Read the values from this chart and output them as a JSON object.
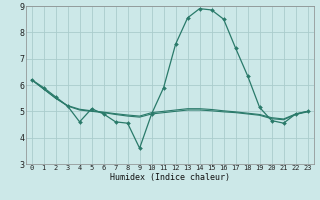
{
  "xlabel": "Humidex (Indice chaleur)",
  "bg_color": "#cce8e8",
  "grid_color": "#aacccc",
  "line_color": "#2a7a6a",
  "xlim": [
    -0.5,
    23.5
  ],
  "ylim": [
    3,
    9
  ],
  "yticks": [
    3,
    4,
    5,
    6,
    7,
    8,
    9
  ],
  "xticks": [
    0,
    1,
    2,
    3,
    4,
    5,
    6,
    7,
    8,
    9,
    10,
    11,
    12,
    13,
    14,
    15,
    16,
    17,
    18,
    19,
    20,
    21,
    22,
    23
  ],
  "curve1_x": [
    0,
    1,
    2,
    3,
    4,
    5,
    6,
    7,
    8,
    9,
    10,
    11,
    12,
    13,
    14,
    15,
    16,
    17,
    18,
    19,
    20,
    21,
    22,
    23
  ],
  "curve1_y": [
    6.2,
    5.9,
    5.55,
    5.2,
    4.6,
    5.1,
    4.9,
    4.6,
    4.55,
    3.6,
    4.9,
    5.9,
    7.55,
    8.55,
    8.9,
    8.85,
    8.5,
    7.4,
    6.35,
    5.15,
    4.65,
    4.55,
    4.9,
    5.0
  ],
  "curve2_x": [
    0,
    1,
    2,
    3,
    4,
    5,
    6,
    7,
    8,
    9,
    10,
    11,
    12,
    13,
    14,
    15,
    16,
    17,
    18,
    19,
    20,
    21,
    22,
    23
  ],
  "curve2_y": [
    6.2,
    5.85,
    5.5,
    5.2,
    5.05,
    5.0,
    4.95,
    4.88,
    4.82,
    4.78,
    4.9,
    4.95,
    5.0,
    5.05,
    5.05,
    5.02,
    4.98,
    4.95,
    4.9,
    4.85,
    4.72,
    4.68,
    4.88,
    4.98
  ],
  "curve3_x": [
    0,
    1,
    2,
    3,
    4,
    5,
    6,
    7,
    8,
    9,
    10,
    11,
    12,
    13,
    14,
    15,
    16,
    17,
    18,
    19,
    20,
    21,
    22,
    23
  ],
  "curve3_y": [
    6.2,
    5.85,
    5.5,
    5.22,
    5.08,
    5.02,
    4.97,
    4.91,
    4.86,
    4.82,
    4.95,
    5.0,
    5.05,
    5.1,
    5.1,
    5.07,
    5.02,
    4.98,
    4.93,
    4.88,
    4.76,
    4.71,
    4.9,
    5.0
  ]
}
